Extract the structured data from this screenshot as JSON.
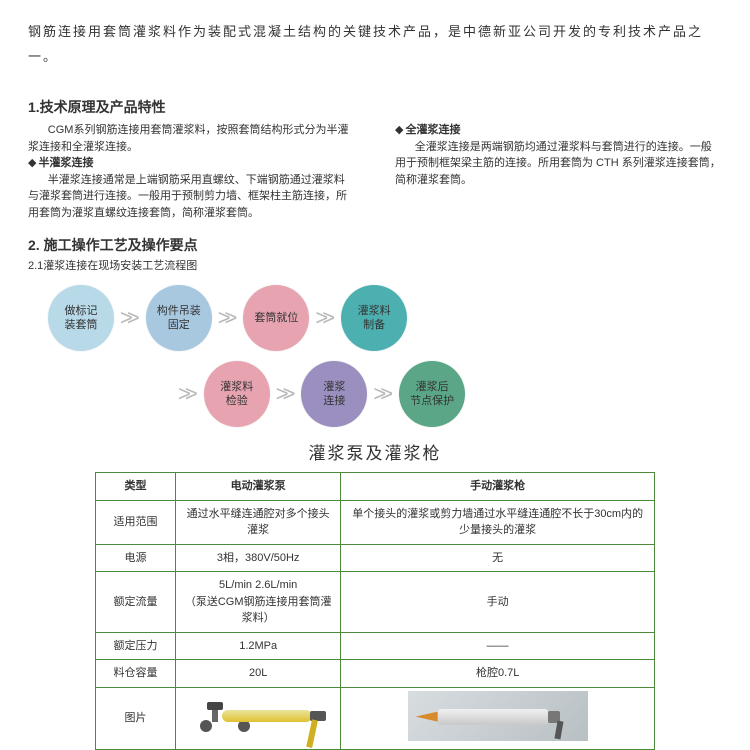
{
  "intro": "钢筋连接用套筒灌浆料作为装配式混凝土结构的关键技术产品，是中德新亚公司开发的专利技术产品之一。",
  "sec1": {
    "title": "1.技术原理及产品特性",
    "left": {
      "lead": "CGM系列钢筋连接用套筒灌浆料，按照套筒结构形式分为半灌浆连接和全灌浆连接。",
      "sub_title": "半灌浆连接",
      "body": "半灌浆连接通常是上端钢筋采用直螺纹、下端钢筋通过灌浆料与灌浆套筒进行连接。一般用于预制剪力墙、框架柱主筋连接，所用套筒为灌浆直螺纹连接套筒，简称灌浆套筒。"
    },
    "right": {
      "sub_title": "全灌浆连接",
      "body": "全灌浆连接是两端钢筋均通过灌浆料与套筒进行的连接。一般用于预制框架梁主筋的连接。所用套筒为 CTH 系列灌浆连接套筒，简称灌浆套筒。"
    }
  },
  "sec2": {
    "title": "2. 施工操作工艺及操作要点",
    "caption": "2.1灌浆连接在现场安装工艺流程图"
  },
  "flow": {
    "nodes": [
      {
        "label": "做标记\n装套筒",
        "color": "#b7d9e8"
      },
      {
        "label": "构件吊装\n固定",
        "color": "#a8c8e0"
      },
      {
        "label": "套筒就位",
        "color": "#e7a3b0"
      },
      {
        "label": "灌浆料\n制备",
        "color": "#4db0b0"
      },
      {
        "label": "灌浆料\n检验",
        "color": "#e7a3b0"
      },
      {
        "label": "灌浆\n连接",
        "color": "#9a8fbf"
      },
      {
        "label": "灌浆后\n节点保护",
        "color": "#5aa686"
      }
    ],
    "arrow_glyph": ">>"
  },
  "table": {
    "title": "灌浆泵及灌浆枪",
    "cols": [
      "电动灌浆泵",
      "手动灌浆枪"
    ],
    "row_labels": [
      "类型",
      "适用范围",
      "电源",
      "额定流量",
      "额定压力",
      "料仓容量",
      "图片"
    ],
    "rows": {
      "scope": [
        "通过水平缝连通腔对多个接头灌浆",
        "单个接头的灌浆或剪力墙通过水平缝连通腔不长于30cm内的少量接头的灌浆"
      ],
      "power": [
        "3相，380V/50Hz",
        "无"
      ],
      "flow": [
        "5L/min  2.6L/min\n（泵送CGM钢筋连接用套筒灌浆料）",
        "手动"
      ],
      "pressure": [
        "1.2MPa",
        "——"
      ],
      "capacity": [
        "20L",
        "枪腔0.7L"
      ]
    },
    "border_color": "#4a8a3a"
  }
}
